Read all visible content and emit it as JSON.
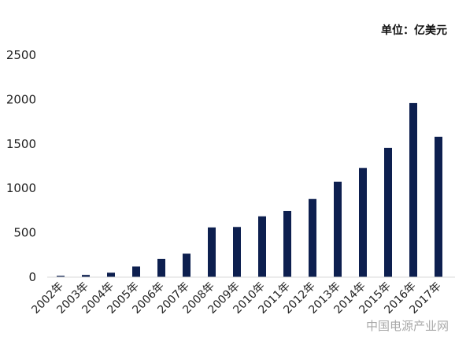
{
  "unit_label": "单位：亿美元",
  "watermark": "中国电源产业网",
  "colors": {
    "bar": "#0d1f4f",
    "axis": "#d9d9d9",
    "text": "#222222"
  },
  "chart_data": {
    "type": "bar",
    "title": "",
    "xlabel": "",
    "ylabel": "",
    "ylim": [
      0,
      2500
    ],
    "yticks": [
      0,
      500,
      1000,
      1500,
      2000,
      2500
    ],
    "grid": false,
    "categories": [
      "2002年",
      "2003年",
      "2004年",
      "2005年",
      "2006年",
      "2007年",
      "2008年",
      "2009年",
      "2010年",
      "2011年",
      "2012年",
      "2013年",
      "2014年",
      "2015年",
      "2016年",
      "2017年"
    ],
    "values": [
      15,
      25,
      50,
      120,
      205,
      265,
      560,
      565,
      685,
      745,
      880,
      1075,
      1230,
      1455,
      1960,
      1580
    ]
  }
}
